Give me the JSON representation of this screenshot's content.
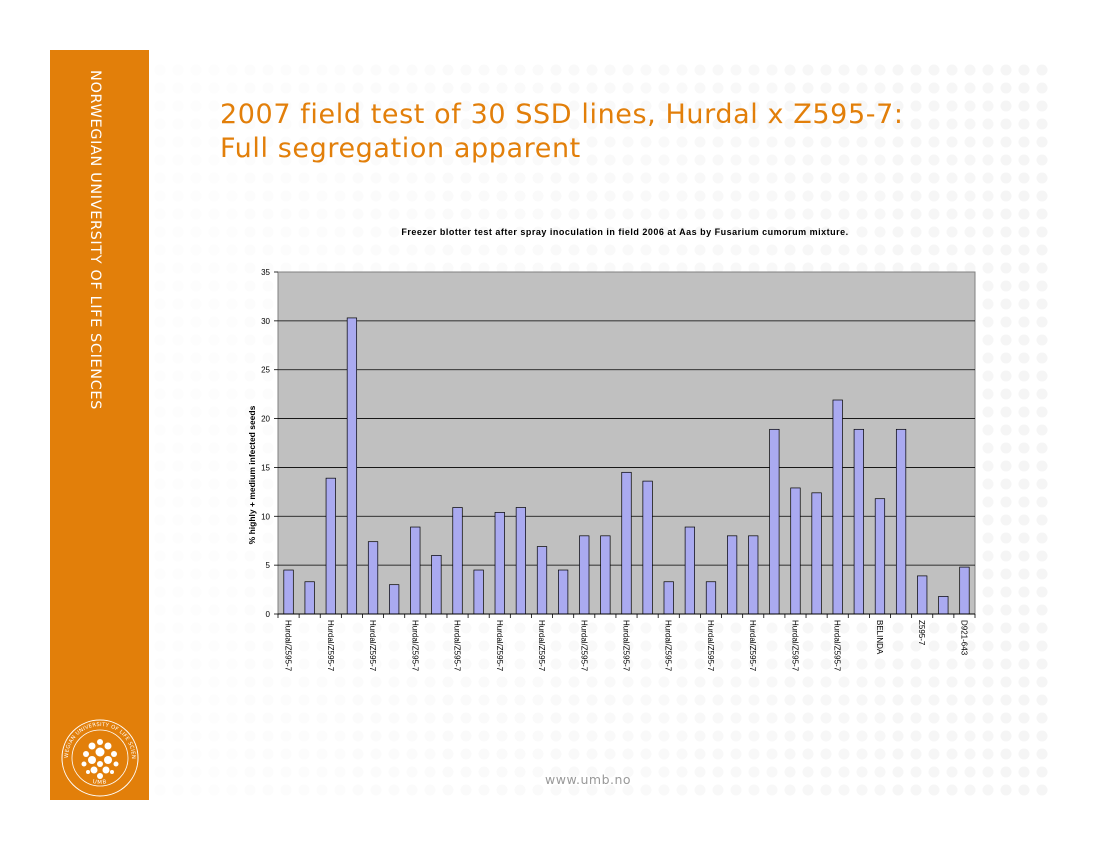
{
  "slide": {
    "sidebar_text": "NORWEGIAN UNIVERSITY OF LIFE SCIENCES",
    "title_line1": "2007 field test of 30 SSD lines, Hurdal x Z595-7:",
    "title_line2": "Full segregation apparent",
    "footer": "www.umb.no",
    "logo_text": "NORWEGIAN UNIVERSITY OF LIFE SCIENCES",
    "logo_text_bottom": "UMB",
    "colors": {
      "accent": "#e27f0a",
      "bar": "#aaaaf0",
      "plot_bg": "#c0c0c0"
    }
  },
  "chart_data": {
    "type": "bar",
    "title": "Freezer blotter test after spray inoculation in field 2006 at Aas by Fusarium cumorum mixture.",
    "ylabel": "% highly + medium infected seeds",
    "xlabel": "",
    "ylim": [
      0,
      35
    ],
    "yticks": [
      0,
      5,
      10,
      15,
      20,
      25,
      30,
      35
    ],
    "grid": true,
    "legend": "none",
    "categories": [
      "Hurdal/Z595-7",
      "",
      "Hurdal/Z595-7",
      "",
      "Hurdal/Z595-7",
      "",
      "Hurdal/Z595-7",
      "",
      "Hurdal/Z595-7",
      "",
      "Hurdal/Z595-7",
      "",
      "Hurdal/Z595-7",
      "",
      "Hurdal/Z595-7",
      "",
      "Hurdal/Z595-7",
      "",
      "Hurdal/Z595-7",
      "",
      "Hurdal/Z595-7",
      "",
      "Hurdal/Z595-7",
      "",
      "Hurdal/Z595-7",
      "",
      "Hurdal/Z595-7",
      "",
      "BELINDA",
      "",
      "Z595-7",
      "",
      "D921-643"
    ],
    "values": [
      4.5,
      3.3,
      13.9,
      30.3,
      7.4,
      3.0,
      8.9,
      6.0,
      10.9,
      4.5,
      10.4,
      10.9,
      6.9,
      4.5,
      8.0,
      8.0,
      14.5,
      13.6,
      3.3,
      8.9,
      3.3,
      8.0,
      8.0,
      18.9,
      12.9,
      12.4,
      21.9,
      18.9,
      11.8,
      18.9,
      3.9,
      1.8,
      4.8
    ]
  }
}
